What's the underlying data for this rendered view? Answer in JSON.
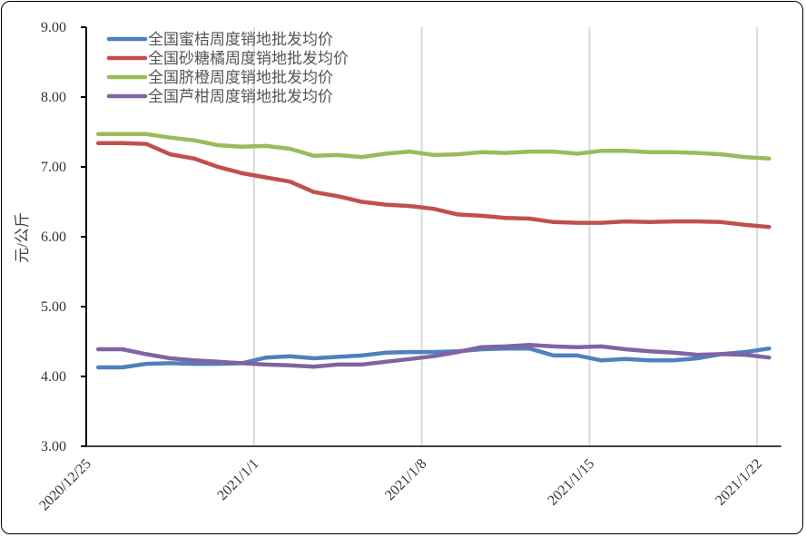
{
  "chart_data": {
    "type": "line",
    "title": "",
    "xlabel": "",
    "ylabel": "元/公斤",
    "ylim": [
      3,
      9
    ],
    "yticks": [
      "3.00",
      "4.00",
      "5.00",
      "6.00",
      "7.00",
      "8.00",
      "9.00"
    ],
    "xstart": "2020/12/25",
    "xticks": [
      "2020/12/25",
      "2021/1/1",
      "2021/1/8",
      "2021/1/15",
      "2021/1/22"
    ],
    "grid": "vertical at x ticks",
    "legend": "top-left",
    "series": [
      {
        "name": "全国蜜桔周度销地批发均价",
        "color": "#4f81bd",
        "values": [
          4.13,
          4.13,
          4.18,
          4.19,
          4.18,
          4.18,
          4.19,
          4.27,
          4.29,
          4.26,
          4.28,
          4.3,
          4.34,
          4.35,
          4.35,
          4.36,
          4.39,
          4.4,
          4.4,
          4.3,
          4.3,
          4.23,
          4.25,
          4.23,
          4.23,
          4.26,
          4.32,
          4.35,
          4.4
        ]
      },
      {
        "name": "全国砂糖橘周度销地批发均价",
        "color": "#c0504d",
        "values": [
          7.34,
          7.34,
          7.33,
          7.18,
          7.12,
          7.0,
          6.91,
          6.85,
          6.79,
          6.64,
          6.58,
          6.5,
          6.46,
          6.44,
          6.4,
          6.32,
          6.3,
          6.27,
          6.26,
          6.21,
          6.2,
          6.2,
          6.22,
          6.21,
          6.22,
          6.22,
          6.21,
          6.17,
          6.14
        ]
      },
      {
        "name": "全国脐橙周度销地批发均价",
        "color": "#9bbb59",
        "values": [
          7.47,
          7.47,
          7.47,
          7.42,
          7.38,
          7.31,
          7.29,
          7.3,
          7.26,
          7.16,
          7.17,
          7.14,
          7.19,
          7.22,
          7.17,
          7.18,
          7.21,
          7.2,
          7.22,
          7.22,
          7.19,
          7.23,
          7.23,
          7.21,
          7.21,
          7.2,
          7.18,
          7.14,
          7.12
        ]
      },
      {
        "name": "全国芦柑周度销地批发均价",
        "color": "#8064a2",
        "values": [
          4.39,
          4.39,
          4.32,
          4.26,
          4.23,
          4.21,
          4.19,
          4.17,
          4.16,
          4.14,
          4.17,
          4.17,
          4.21,
          4.25,
          4.29,
          4.35,
          4.42,
          4.43,
          4.45,
          4.43,
          4.42,
          4.43,
          4.39,
          4.36,
          4.34,
          4.31,
          4.32,
          4.31,
          4.27
        ]
      }
    ]
  }
}
